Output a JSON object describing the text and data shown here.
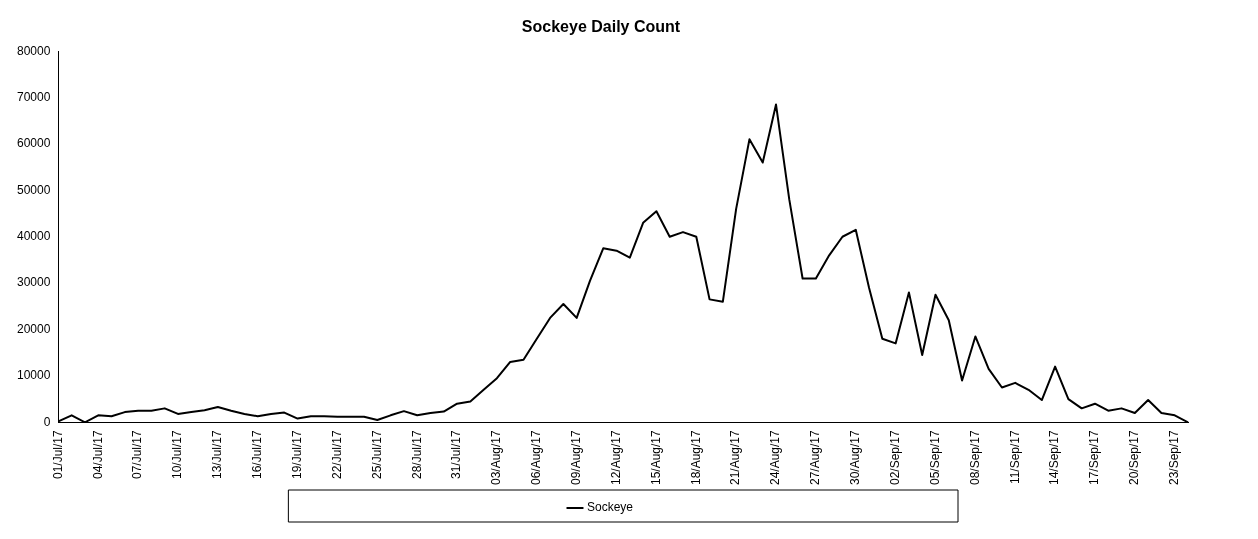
{
  "chart_data": {
    "type": "line",
    "title": "Sockeye Daily Count",
    "categories": [
      "01/Jul/17",
      null,
      null,
      "04/Jul/17",
      null,
      null,
      "07/Jul/17",
      null,
      null,
      "10/Jul/17",
      null,
      null,
      "13/Jul/17",
      null,
      null,
      "16/Jul/17",
      null,
      null,
      "19/Jul/17",
      null,
      null,
      "22/Jul/17",
      null,
      null,
      "25/Jul/17",
      null,
      null,
      "28/Jul/17",
      null,
      null,
      "31/Jul/17",
      null,
      null,
      "03/Aug/17",
      null,
      null,
      "06/Aug/17",
      null,
      null,
      "09/Aug/17",
      null,
      null,
      "12/Aug/17",
      null,
      null,
      "15/Aug/17",
      null,
      null,
      "18/Aug/17",
      null,
      null,
      "21/Aug/17",
      null,
      null,
      "24/Aug/17",
      null,
      null,
      "27/Aug/17",
      null,
      null,
      "30/Aug/17",
      null,
      null,
      "02/Sep/17",
      null,
      null,
      "05/Sep/17",
      null,
      null,
      "08/Sep/17",
      null,
      null,
      "11/Sep/17",
      null,
      null,
      "14/Sep/17",
      null,
      null,
      "17/Sep/17",
      null,
      null,
      "20/Sep/17",
      null,
      null,
      "23/Sep/17",
      null
    ],
    "series": [
      {
        "name": "Sockeye",
        "color": "#000000",
        "values": [
          200,
          1500,
          0,
          1500,
          1300,
          2200,
          2500,
          2500,
          3000,
          1800,
          2200,
          2600,
          3300,
          2500,
          1800,
          1300,
          1800,
          2100,
          800,
          1300,
          1300,
          1200,
          1200,
          1200,
          500,
          1500,
          2400,
          1500,
          2000,
          2300,
          4000,
          4500,
          7000,
          9500,
          13000,
          13500,
          18000,
          22500,
          25500,
          22500,
          30500,
          37500,
          37000,
          35500,
          43000,
          45500,
          40000,
          41000,
          40000,
          26500,
          26000,
          46000,
          61000,
          56000,
          68500,
          48000,
          31000,
          31000,
          36000,
          40000,
          41500,
          29000,
          18000,
          17000,
          28000,
          14500,
          27500,
          22000,
          9000,
          18500,
          11500,
          7500,
          8500,
          7000,
          4800,
          12000,
          5000,
          3000,
          4000,
          2500,
          3000,
          2000,
          4800,
          2000,
          1500,
          0
        ]
      }
    ],
    "ylim": [
      0,
      80000
    ],
    "yticks": [
      0,
      10000,
      20000,
      30000,
      40000,
      50000,
      60000,
      70000,
      80000
    ],
    "grid": false,
    "legend": "bottom",
    "marker": "none",
    "line_style": "solid"
  }
}
